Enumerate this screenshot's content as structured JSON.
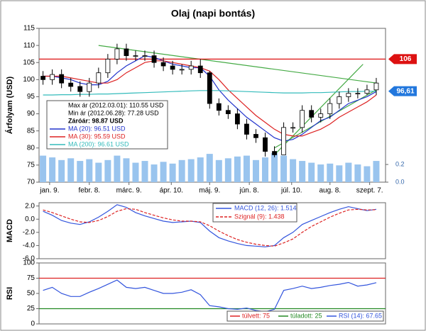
{
  "chart_data": [
    {
      "type": "candlestick",
      "title": "Olaj (napi bontás)",
      "y_label": "Árfolyam (USD)",
      "x": [
        3,
        10,
        17,
        24,
        31,
        38,
        45,
        52,
        59,
        66,
        73,
        80,
        87,
        94,
        101,
        108,
        115,
        122,
        129,
        136,
        143,
        150,
        157,
        164,
        171,
        178,
        185,
        192,
        199,
        206,
        213,
        220,
        227,
        234,
        241,
        248,
        255
      ],
      "xlim": [
        0,
        262
      ],
      "xticks": [
        {
          "value": 8,
          "label": "jan. 9."
        },
        {
          "value": 38,
          "label": "febr. 8."
        },
        {
          "value": 68,
          "label": "márc. 9."
        },
        {
          "value": 100,
          "label": "ápr. 10."
        },
        {
          "value": 129,
          "label": "máj. 9."
        },
        {
          "value": 159,
          "label": "jún. 8."
        },
        {
          "value": 191,
          "label": "júl. 10."
        },
        {
          "value": 220,
          "label": "aug. 8."
        },
        {
          "value": 250,
          "label": "szept. 7."
        }
      ],
      "ylim": [
        70,
        115
      ],
      "yticks": [
        70,
        75,
        80,
        85,
        90,
        95,
        100,
        105,
        110,
        115
      ],
      "open": [
        101,
        100,
        101.5,
        99,
        98,
        96.5,
        99,
        102,
        106,
        109,
        107,
        107,
        107,
        105,
        104,
        103,
        103,
        104,
        102,
        93,
        91,
        90,
        87,
        84,
        83,
        79,
        78,
        86,
        86,
        91,
        89,
        90,
        93,
        95,
        96,
        96,
        97
      ],
      "high": [
        102.5,
        103,
        103,
        100.5,
        99.5,
        100.5,
        103.5,
        107.5,
        110.5,
        110.5,
        108.5,
        108.5,
        108.5,
        106.5,
        105.5,
        104.5,
        105.5,
        106,
        102.5,
        94.5,
        92.5,
        91.5,
        88.5,
        85.5,
        84.5,
        80.5,
        87.5,
        87.5,
        92.5,
        92.5,
        91.5,
        94.5,
        96.5,
        97.5,
        97.5,
        98.5,
        100.5
      ],
      "low": [
        98.5,
        98.5,
        97.5,
        96.5,
        95,
        95,
        97.5,
        100.5,
        104.5,
        105.5,
        105.5,
        105.5,
        103.5,
        102.5,
        101.5,
        101.5,
        101.5,
        100.5,
        91.5,
        89.5,
        88.5,
        85.5,
        82.5,
        81.5,
        77.5,
        77.3,
        78,
        84.5,
        84.5,
        87.5,
        87.5,
        88.5,
        91.5,
        93.5,
        94.5,
        95.5,
        95.5
      ],
      "close": [
        100,
        101.5,
        99,
        98,
        96.5,
        99,
        102,
        106,
        109,
        107,
        107,
        107,
        105,
        104,
        103,
        103,
        104,
        102,
        93,
        91,
        90,
        87,
        84,
        83,
        79,
        78,
        86,
        86,
        91,
        89,
        90,
        93,
        95,
        96,
        96,
        97,
        99
      ],
      "series": [
        {
          "name": "MA (20): 96.51 USD",
          "color": "#2233cc",
          "values": [
            101,
            101,
            100.5,
            100,
            99,
            98.5,
            98.5,
            99.5,
            102,
            104,
            105.5,
            107,
            106.5,
            105.5,
            104.5,
            104,
            103.5,
            103.5,
            101,
            97,
            94,
            91.5,
            89,
            87,
            85,
            83,
            82,
            82.5,
            84,
            86,
            88,
            89,
            91,
            93,
            94,
            95,
            96.5
          ]
        },
        {
          "name": "MA (30): 95.59 USD",
          "color": "#dd2222",
          "values": [
            101,
            101,
            101,
            100.5,
            100,
            99.5,
            99,
            99,
            100,
            102,
            103.5,
            105,
            105.5,
            105.5,
            105,
            104.5,
            104,
            103.5,
            102.5,
            100,
            97,
            94.5,
            92,
            89.5,
            87.5,
            85.5,
            84,
            83.5,
            83.5,
            84.5,
            85.5,
            87,
            89,
            90.5,
            92,
            93.5,
            95.5
          ]
        },
        {
          "name": "MA (200): 96.61 USD",
          "color": "#33bbbb",
          "values": [
            95.5,
            95.5,
            95.6,
            95.6,
            95.7,
            95.7,
            95.8,
            95.8,
            95.9,
            96,
            96.1,
            96.2,
            96.3,
            96.4,
            96.5,
            96.6,
            96.7,
            96.8,
            96.8,
            96.8,
            96.7,
            96.6,
            96.5,
            96.4,
            96.3,
            96.2,
            96.1,
            96.1,
            96.1,
            96.2,
            96.2,
            96.3,
            96.4,
            96.5,
            96.5,
            96.6,
            96.6
          ]
        }
      ],
      "volume": {
        "color": "#99c4ee",
        "axis": "y2",
        "values": [
          0.3,
          0.28,
          0.25,
          0.27,
          0.24,
          0.26,
          0.22,
          0.25,
          0.3,
          0.27,
          0.22,
          0.24,
          0.2,
          0.23,
          0.21,
          0.25,
          0.26,
          0.28,
          0.32,
          0.25,
          0.27,
          0.29,
          0.3,
          0.25,
          0.28,
          0.33,
          0.3,
          0.26,
          0.24,
          0.22,
          0.2,
          0.21,
          0.19,
          0.22,
          0.2,
          0.18,
          0.24
        ]
      },
      "y2lim": [
        0,
        1.74
      ],
      "y2ticks": [
        {
          "value": 0,
          "label": "0.0"
        },
        0.2
      ],
      "info": [
        "Max ár (2012.03.01): 110.55 USD",
        "Min ár (2012.06.28): 77.28 USD",
        "Záróár: 98.87 USD"
      ],
      "trendlines": [
        {
          "color": "#44aa44",
          "x": [
            45,
            255
          ],
          "y": [
            110,
            99
          ]
        },
        {
          "color": "#44aa44",
          "x": [
            178,
            245
          ],
          "y": [
            78,
            104.5
          ]
        },
        {
          "color": "#44aa44",
          "x": [
            178,
            255
          ],
          "y": [
            80,
            97
          ]
        }
      ],
      "markers": [
        {
          "value": 106,
          "label": "106",
          "color": "#dd1111"
        },
        {
          "value": 96.61,
          "label": "96,61",
          "color": "#2277dd"
        }
      ]
    },
    {
      "type": "line",
      "y_label": "MACD",
      "ylim": [
        -6,
        2.5
      ],
      "yticks": [
        {
          "value": -6,
          "label": "-6.0"
        },
        {
          "value": -4,
          "label": "-4.0"
        },
        {
          "value": -2,
          "label": "-2.0"
        },
        {
          "value": 0,
          "label": "0.0"
        },
        {
          "value": 2,
          "label": "2.0"
        }
      ],
      "series": [
        {
          "name": "MACD (12, 26): 1.514",
          "color": "#3355dd",
          "values": [
            1.2,
            0.6,
            -0.2,
            -0.6,
            -0.8,
            -0.4,
            0.3,
            1.2,
            2.2,
            1.8,
            1.0,
            0.5,
            0.1,
            -0.3,
            -0.5,
            -0.4,
            -0.3,
            -0.5,
            -1.8,
            -2.8,
            -3.3,
            -3.7,
            -4.0,
            -4.1,
            -4.2,
            -4.0,
            -2.8,
            -2.0,
            -0.8,
            -0.2,
            0.4,
            1.0,
            1.5,
            1.9,
            1.6,
            1.3,
            1.5
          ]
        },
        {
          "name": "Szignál (9): 1.438",
          "color": "#dd2222",
          "dashed": true,
          "values": [
            1.4,
            1.0,
            0.5,
            0,
            -0.4,
            -0.5,
            -0.2,
            0.4,
            1.2,
            1.6,
            1.5,
            1.0,
            0.6,
            0.2,
            -0.1,
            -0.3,
            -0.3,
            -0.4,
            -1.0,
            -1.8,
            -2.5,
            -3.1,
            -3.5,
            -3.8,
            -4.0,
            -4.1,
            -3.6,
            -3.0,
            -2.0,
            -1.1,
            -0.4,
            0.3,
            0.9,
            1.4,
            1.5,
            1.4,
            1.44
          ]
        }
      ]
    },
    {
      "type": "line",
      "y_label": "RSI",
      "ylim": [
        0,
        100
      ],
      "yticks": [
        0,
        25,
        50,
        75,
        100
      ],
      "levels": [
        {
          "name": "túlvett: 75",
          "value": 75,
          "color": "#dd2222"
        },
        {
          "name": "túladott: 25",
          "value": 25,
          "color": "#228822"
        }
      ],
      "series": [
        {
          "name": "RSI (14): 67.65",
          "color": "#3355dd",
          "values": [
            55,
            60,
            50,
            45,
            45,
            52,
            58,
            65,
            72,
            60,
            58,
            60,
            55,
            50,
            50,
            52,
            56,
            48,
            30,
            28,
            25,
            24,
            26,
            22,
            20,
            24,
            55,
            58,
            62,
            58,
            60,
            63,
            65,
            68,
            62,
            64,
            67.65
          ]
        }
      ]
    }
  ]
}
